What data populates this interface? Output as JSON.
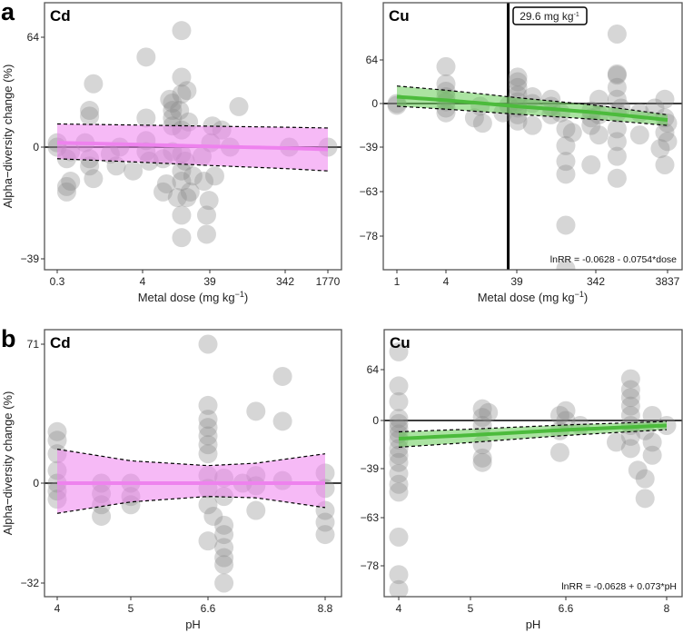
{
  "chart_data": [
    {
      "type": "scatter",
      "panel_letter": "a",
      "title": "Cd",
      "xlabel_pre": "Metal dose (mg kg",
      "xlabel_sup": "−1",
      "xlabel_post": ")",
      "ylabel": "Alpha−diversity change (%)",
      "xscale": "log",
      "xticks": [
        "0.3",
        "4",
        "39",
        "342",
        "1770"
      ],
      "yticks": [
        "64",
        "0",
        "−39"
      ],
      "ytick_values": [
        64,
        0,
        -39
      ],
      "band_color": "#ee82ee",
      "line_color": "#ee82ee",
      "points": [
        [
          0.3,
          2
        ],
        [
          0.3,
          0
        ],
        [
          0.4,
          -16
        ],
        [
          0.4,
          -18
        ],
        [
          0.45,
          -14
        ],
        [
          0.4,
          -5
        ],
        [
          0.45,
          -2
        ],
        [
          0.8,
          18
        ],
        [
          0.8,
          15
        ],
        [
          0.9,
          33
        ],
        [
          0.8,
          -5
        ],
        [
          0.8,
          -8
        ],
        [
          0.9,
          -13
        ],
        [
          0.7,
          2
        ],
        [
          1.5,
          -3
        ],
        [
          1.8,
          -8
        ],
        [
          2,
          0
        ],
        [
          3,
          -10
        ],
        [
          4.5,
          50
        ],
        [
          4.5,
          14
        ],
        [
          4.5,
          3
        ],
        [
          4.5,
          -2
        ],
        [
          5,
          -6
        ],
        [
          8,
          -18
        ],
        [
          8,
          -5
        ],
        [
          9,
          -15
        ],
        [
          10,
          24
        ],
        [
          11,
          22
        ],
        [
          11,
          18
        ],
        [
          11,
          14
        ],
        [
          11,
          10
        ],
        [
          11,
          -2
        ],
        [
          15,
          69
        ],
        [
          15,
          37
        ],
        [
          15,
          27
        ],
        [
          14,
          18
        ],
        [
          15,
          8
        ],
        [
          15,
          -3
        ],
        [
          15,
          -10
        ],
        [
          15,
          -14
        ],
        [
          13,
          -20
        ],
        [
          15,
          -26
        ],
        [
          15,
          -33
        ],
        [
          18,
          29
        ],
        [
          19,
          12
        ],
        [
          17,
          -6
        ],
        [
          18,
          -20
        ],
        [
          22,
          -12
        ],
        [
          20,
          -18
        ],
        [
          30,
          -4
        ],
        [
          32,
          -14
        ],
        [
          35,
          -26
        ],
        [
          35,
          -32
        ],
        [
          38,
          -21
        ],
        [
          40,
          2
        ],
        [
          42,
          10
        ],
        [
          45,
          -12
        ],
        [
          55,
          8
        ],
        [
          70,
          0
        ],
        [
          90,
          20
        ],
        [
          400,
          0
        ],
        [
          1770,
          0
        ]
      ],
      "fit": {
        "x": [
          0.3,
          1770
        ],
        "y": [
          2,
          -1
        ],
        "lo": [
          -5,
          -10
        ],
        "hi": [
          11,
          9
        ]
      }
    },
    {
      "type": "scatter",
      "title": "Cu",
      "xlabel_pre": "Metal dose (mg kg",
      "xlabel_sup": "−1",
      "xlabel_post": ")",
      "xscale": "log",
      "xticks": [
        "1",
        "4",
        "39",
        "342",
        "3837"
      ],
      "yticks": [
        "64",
        "0",
        "−39",
        "−63",
        "−78"
      ],
      "ytick_values": [
        64,
        0,
        -39,
        -63,
        -78
      ],
      "band_color": "#66cc55",
      "line_color": "#4cbb3c",
      "threshold": {
        "value": 29.6,
        "label_pre": "29.6 mg kg",
        "label_sup": "-1"
      },
      "equation": "lnRR = -0.0628 - 0.0754*dose",
      "points": [
        [
          1,
          0
        ],
        [
          1,
          -2
        ],
        [
          4,
          52
        ],
        [
          4,
          25
        ],
        [
          4,
          15
        ],
        [
          4,
          8
        ],
        [
          4,
          2
        ],
        [
          4,
          -5
        ],
        [
          4,
          -10
        ],
        [
          10,
          -15
        ],
        [
          13,
          -20
        ],
        [
          12,
          -3
        ],
        [
          25,
          -10
        ],
        [
          30,
          -2
        ],
        [
          40,
          35
        ],
        [
          40,
          28
        ],
        [
          40,
          20
        ],
        [
          40,
          10
        ],
        [
          40,
          2
        ],
        [
          40,
          -5
        ],
        [
          40,
          -12
        ],
        [
          40,
          -18
        ],
        [
          60,
          8
        ],
        [
          60,
          0
        ],
        [
          60,
          -22
        ],
        [
          100,
          5
        ],
        [
          100,
          -3
        ],
        [
          100,
          -12
        ],
        [
          130,
          -10
        ],
        [
          150,
          -25
        ],
        [
          150,
          -38
        ],
        [
          150,
          -48
        ],
        [
          150,
          -55
        ],
        [
          150,
          -75
        ],
        [
          150,
          -85
        ],
        [
          150,
          -88
        ],
        [
          180,
          -28
        ],
        [
          300,
          -8
        ],
        [
          300,
          -15
        ],
        [
          300,
          -22
        ],
        [
          300,
          -50
        ],
        [
          380,
          5
        ],
        [
          380,
          -12
        ],
        [
          380,
          -30
        ],
        [
          700,
          120
        ],
        [
          700,
          38
        ],
        [
          700,
          40
        ],
        [
          700,
          20
        ],
        [
          700,
          5
        ],
        [
          700,
          -10
        ],
        [
          700,
          -25
        ],
        [
          700,
          -35
        ],
        [
          700,
          -45
        ],
        [
          700,
          -57
        ],
        [
          800,
          -5
        ],
        [
          1500,
          -10
        ],
        [
          1500,
          -30
        ],
        [
          2500,
          -5
        ],
        [
          3000,
          -40
        ],
        [
          3500,
          5
        ],
        [
          3500,
          -15
        ],
        [
          3500,
          -28
        ],
        [
          3500,
          -50
        ],
        [
          3837,
          -20
        ],
        [
          3837,
          -35
        ]
      ],
      "fit": {
        "x": [
          1,
          3837
        ],
        "y": [
          8,
          -17
        ],
        "lo": [
          -3,
          -22
        ],
        "hi": [
          22,
          -12
        ]
      }
    },
    {
      "type": "scatter",
      "panel_letter": "b",
      "title": "Cd",
      "xlabel_pre": "pH",
      "ylabel": "Alpha−diversity change (%)",
      "xscale": "linear",
      "xticks": [
        "4",
        "5",
        "6.6",
        "8.8"
      ],
      "yticks": [
        "71",
        "0",
        "−32"
      ],
      "ytick_values": [
        71,
        0,
        -32
      ],
      "band_color": "#ee82ee",
      "line_color": "#ee82ee",
      "points": [
        [
          4,
          22
        ],
        [
          4,
          18
        ],
        [
          4,
          12
        ],
        [
          4,
          5
        ],
        [
          4,
          0
        ],
        [
          4,
          -3
        ],
        [
          4,
          -6
        ],
        [
          4.6,
          0
        ],
        [
          4.6,
          -4
        ],
        [
          4.6,
          -8
        ],
        [
          4.6,
          -12
        ],
        [
          5,
          0
        ],
        [
          5,
          -5
        ],
        [
          5,
          -8
        ],
        [
          6.6,
          71
        ],
        [
          6.6,
          35
        ],
        [
          6.6,
          28
        ],
        [
          6.6,
          24
        ],
        [
          6.6,
          20
        ],
        [
          6.6,
          16
        ],
        [
          6.6,
          12
        ],
        [
          6.6,
          3
        ],
        [
          6.6,
          -2
        ],
        [
          6.6,
          -8
        ],
        [
          6.6,
          -20
        ],
        [
          6.7,
          -12
        ],
        [
          6.9,
          2
        ],
        [
          6.9,
          -5
        ],
        [
          6.9,
          -15
        ],
        [
          6.9,
          -18
        ],
        [
          6.9,
          -22
        ],
        [
          6.9,
          -25
        ],
        [
          6.9,
          -27
        ],
        [
          6.9,
          -32
        ],
        [
          7.25,
          0
        ],
        [
          7.5,
          3
        ],
        [
          7.5,
          -1
        ],
        [
          7.5,
          -10
        ],
        [
          7.5,
          32
        ],
        [
          8.0,
          51
        ],
        [
          8.0,
          27
        ],
        [
          8.0,
          1
        ],
        [
          8.8,
          4
        ],
        [
          8.8,
          -2
        ],
        [
          8.8,
          -10
        ],
        [
          8.8,
          -14
        ],
        [
          8.8,
          -18
        ]
      ],
      "fit": {
        "x": [
          4,
          5,
          6.6,
          7.5,
          8.8
        ],
        "y": [
          0,
          0,
          0,
          0,
          0
        ],
        "lo": [
          -11,
          -7,
          -5,
          -5.5,
          -9
        ],
        "hi": [
          14,
          9,
          7,
          8,
          12
        ]
      }
    },
    {
      "type": "scatter",
      "title": "Cu",
      "xlabel_pre": "pH",
      "xscale": "linear",
      "xticks": [
        "4",
        "5",
        "6.6",
        "8"
      ],
      "yticks": [
        "64",
        "0",
        "−39",
        "−63",
        "−78"
      ],
      "ytick_values": [
        64,
        0,
        -39,
        -63,
        -78
      ],
      "band_color": "#66cc55",
      "line_color": "#4cbb3c",
      "equation": "lnRR = -0.0628 + 0.073*pH",
      "points": [
        [
          4,
          95
        ],
        [
          4,
          40
        ],
        [
          4,
          20
        ],
        [
          4,
          2
        ],
        [
          4,
          -3
        ],
        [
          4,
          -8
        ],
        [
          4,
          -13
        ],
        [
          4,
          -18
        ],
        [
          4,
          -25
        ],
        [
          4,
          -30
        ],
        [
          4,
          -35
        ],
        [
          4,
          -42
        ],
        [
          4,
          -48
        ],
        [
          4,
          -52
        ],
        [
          4,
          -70
        ],
        [
          4,
          -80
        ],
        [
          4,
          -83
        ],
        [
          5.2,
          12
        ],
        [
          5.2,
          3
        ],
        [
          5.3,
          8
        ],
        [
          5.2,
          -5
        ],
        [
          5.2,
          -22
        ],
        [
          5.2,
          -32
        ],
        [
          5.2,
          -35
        ],
        [
          6.5,
          5
        ],
        [
          6.6,
          10
        ],
        [
          6.6,
          0
        ],
        [
          6.5,
          -10
        ],
        [
          6.5,
          -28
        ],
        [
          6.8,
          -5
        ],
        [
          7.3,
          -20
        ],
        [
          7.5,
          50
        ],
        [
          7.5,
          35
        ],
        [
          7.5,
          25
        ],
        [
          7.5,
          15
        ],
        [
          7.5,
          5
        ],
        [
          7.5,
          -5
        ],
        [
          7.5,
          -15
        ],
        [
          7.5,
          -25
        ],
        [
          7.6,
          -40
        ],
        [
          7.7,
          -45
        ],
        [
          7.7,
          -55
        ],
        [
          7.7,
          -10
        ],
        [
          7.8,
          5
        ],
        [
          7.8,
          -20
        ],
        [
          7.8,
          -30
        ],
        [
          8,
          -5
        ]
      ],
      "fit": {
        "x": [
          4,
          8
        ],
        "y": [
          -17,
          -5
        ],
        "lo": [
          -24,
          -9
        ],
        "hi": [
          -11,
          -1
        ]
      }
    }
  ]
}
